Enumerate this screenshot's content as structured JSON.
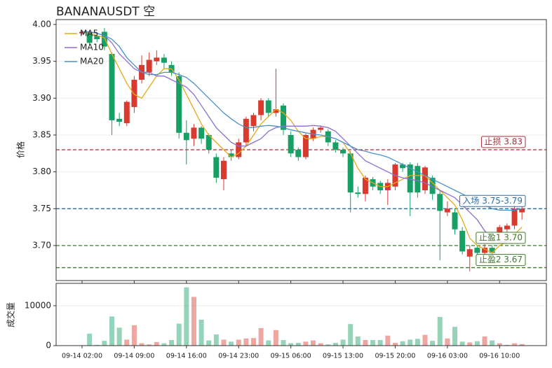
{
  "chart_data": {
    "type": "candlestick",
    "title": "BANANAUSDT  空",
    "ylabel": "价格",
    "volume_label": "成交量",
    "legend": "upper left",
    "grid": true,
    "up_color": "#d93a2f",
    "down_color": "#16a066",
    "categories": [
      "09-14 02:00",
      null,
      null,
      null,
      null,
      null,
      null,
      "09-14 09:00",
      null,
      null,
      null,
      null,
      null,
      null,
      "09-14 16:00",
      null,
      null,
      null,
      null,
      null,
      null,
      "09-14 23:00",
      null,
      null,
      null,
      null,
      null,
      null,
      "09-15 06:00",
      null,
      null,
      null,
      null,
      null,
      null,
      "09-15 13:00",
      null,
      null,
      null,
      null,
      null,
      null,
      "09-15 20:00",
      null,
      null,
      null,
      null,
      null,
      null,
      "09-16 03:00",
      null,
      null,
      null,
      null,
      null,
      null,
      "09-16 10:00",
      null,
      null,
      null
    ],
    "open": [
      3.988,
      3.99,
      3.984,
      3.99,
      3.96,
      3.872,
      3.866,
      3.888,
      3.925,
      3.935,
      3.95,
      3.955,
      3.945,
      3.93,
      3.853,
      3.845,
      3.86,
      3.85,
      3.82,
      3.79,
      3.825,
      3.82,
      3.84,
      3.862,
      3.877,
      3.897,
      3.88,
      3.89,
      3.85,
      3.83,
      3.82,
      3.845,
      3.857,
      3.855,
      3.84,
      3.83,
      3.825,
      3.772,
      3.77,
      3.79,
      3.785,
      3.775,
      3.78,
      3.81,
      3.81,
      3.808,
      3.775,
      3.792,
      3.77,
      3.745,
      3.745,
      3.72,
      3.685,
      3.697,
      3.69,
      3.697,
      3.718,
      3.722,
      3.727,
      3.745
    ],
    "high": [
      3.991,
      3.992,
      3.986,
      3.995,
      3.962,
      3.88,
      3.897,
      3.93,
      3.958,
      3.962,
      3.965,
      3.96,
      3.95,
      3.935,
      3.87,
      3.865,
      3.862,
      3.852,
      3.825,
      3.82,
      3.83,
      3.845,
      3.875,
      3.88,
      3.9,
      3.9,
      3.94,
      3.893,
      3.855,
      3.833,
      3.852,
      3.86,
      3.863,
      3.858,
      3.843,
      3.833,
      3.828,
      3.78,
      3.795,
      3.793,
      3.788,
      3.79,
      3.812,
      3.812,
      3.813,
      3.812,
      3.808,
      3.795,
      3.775,
      3.76,
      3.75,
      3.725,
      3.7,
      3.7,
      3.702,
      3.7,
      3.728,
      3.73,
      3.755,
      3.753
    ],
    "low": [
      3.986,
      3.972,
      3.976,
      3.965,
      3.85,
      3.862,
      3.862,
      3.88,
      3.92,
      3.93,
      3.945,
      3.94,
      3.93,
      3.845,
      3.81,
      3.835,
      3.838,
      3.825,
      3.785,
      3.775,
      3.815,
      3.817,
      3.835,
      3.855,
      3.87,
      3.875,
      3.875,
      3.85,
      3.82,
      3.815,
      3.817,
      3.842,
      3.853,
      3.835,
      3.826,
      3.82,
      3.745,
      3.765,
      3.76,
      3.775,
      3.77,
      3.755,
      3.775,
      3.8,
      3.74,
      3.765,
      3.77,
      3.762,
      3.68,
      3.74,
      3.715,
      3.688,
      3.665,
      3.685,
      3.687,
      3.686,
      3.712,
      3.718,
      3.722,
      3.735
    ],
    "close": [
      3.99,
      3.975,
      3.98,
      3.97,
      3.87,
      3.868,
      3.895,
      3.925,
      3.945,
      3.952,
      3.955,
      3.948,
      3.935,
      3.853,
      3.843,
      3.86,
      3.845,
      3.83,
      3.792,
      3.815,
      3.82,
      3.84,
      3.872,
      3.877,
      3.897,
      3.88,
      3.885,
      3.857,
      3.825,
      3.82,
      3.85,
      3.857,
      3.86,
      3.84,
      3.83,
      3.825,
      3.772,
      3.77,
      3.792,
      3.78,
      3.775,
      3.785,
      3.81,
      3.805,
      3.772,
      3.772,
      3.806,
      3.77,
      3.747,
      3.75,
      3.722,
      3.692,
      3.695,
      3.69,
      3.697,
      3.69,
      3.725,
      3.727,
      3.75,
      3.75
    ],
    "volume": [
      100,
      3000,
      200,
      1200,
      7300,
      4500,
      1500,
      5100,
      600,
      300,
      900,
      600,
      1400,
      5500,
      14600,
      12200,
      6500,
      1300,
      2800,
      1500,
      1000,
      1500,
      1800,
      1900,
      4400,
      1300,
      3900,
      1400,
      600,
      700,
      1000,
      1300,
      600,
      300,
      700,
      1500,
      5400,
      2300,
      1400,
      1400,
      1400,
      2500,
      700,
      1100,
      1500,
      1700,
      2700,
      1200,
      7200,
      1800,
      4700,
      1000,
      800,
      1100,
      2300,
      1300,
      600,
      200,
      600,
      400
    ],
    "ylim": [
      3.6525,
      4.0066
    ],
    "yticks": [
      {
        "value": 3.7,
        "label": "3.70"
      },
      3.75,
      {
        "value": 3.8,
        "label": "3.80"
      },
      3.85,
      {
        "value": 3.9,
        "label": "3.90"
      },
      3.95,
      {
        "value": 4.0,
        "label": "4.00"
      }
    ],
    "volume_ylim": [
      0,
      15600
    ],
    "volume_yticks": [
      0,
      10000
    ],
    "series": [
      {
        "name": "MA5",
        "color": "#e6a817",
        "values": [
          3.99,
          3.988,
          3.985,
          3.982,
          3.96,
          3.94,
          3.92,
          3.905,
          3.9,
          3.915,
          3.93,
          3.94,
          3.94,
          3.925,
          3.905,
          3.885,
          3.865,
          3.85,
          3.84,
          3.83,
          3.82,
          3.825,
          3.835,
          3.85,
          3.865,
          3.875,
          3.885,
          3.88,
          3.87,
          3.855,
          3.845,
          3.845,
          3.848,
          3.848,
          3.845,
          3.84,
          3.825,
          3.805,
          3.79,
          3.785,
          3.78,
          3.78,
          3.785,
          3.79,
          3.795,
          3.795,
          3.795,
          3.785,
          3.775,
          3.765,
          3.755,
          3.735,
          3.71,
          3.7,
          3.695,
          3.69,
          3.7,
          3.705,
          3.715,
          3.725
        ]
      },
      {
        "name": "MA10",
        "color": "#8b6fd0",
        "values": [
          3.99,
          3.99,
          3.988,
          3.985,
          3.975,
          3.96,
          3.95,
          3.94,
          3.935,
          3.935,
          3.93,
          3.93,
          3.925,
          3.92,
          3.915,
          3.905,
          3.89,
          3.875,
          3.86,
          3.85,
          3.84,
          3.835,
          3.835,
          3.84,
          3.845,
          3.855,
          3.86,
          3.862,
          3.862,
          3.862,
          3.862,
          3.863,
          3.862,
          3.86,
          3.855,
          3.845,
          3.835,
          3.825,
          3.815,
          3.81,
          3.805,
          3.8,
          3.795,
          3.792,
          3.79,
          3.788,
          3.785,
          3.78,
          3.775,
          3.77,
          3.765,
          3.755,
          3.745,
          3.735,
          3.72,
          3.71,
          3.705,
          3.705,
          3.71,
          3.715
        ]
      },
      {
        "name": "MA20",
        "color": "#4a90c8",
        "values": [
          3.99,
          3.99,
          3.988,
          3.985,
          3.98,
          3.97,
          3.955,
          3.945,
          3.935,
          3.932,
          3.932,
          3.935,
          3.935,
          3.932,
          3.928,
          3.92,
          3.91,
          3.9,
          3.89,
          3.88,
          3.872,
          3.865,
          3.86,
          3.86,
          3.862,
          3.863,
          3.862,
          3.86,
          3.857,
          3.855,
          3.853,
          3.851,
          3.85,
          3.848,
          3.845,
          3.84,
          3.835,
          3.83,
          3.828,
          3.825,
          3.823,
          3.82,
          3.815,
          3.81,
          3.805,
          3.8,
          3.795,
          3.79,
          3.785,
          3.78,
          3.775,
          3.77,
          3.765,
          3.76,
          3.755,
          3.75,
          3.748,
          3.748,
          3.748,
          3.75
        ]
      }
    ],
    "levels": [
      {
        "label": "止损 3.83",
        "value": 3.83,
        "color": "#a0303a"
      },
      {
        "label": "入场 3.75-3.79",
        "value": 3.75,
        "color": "#2a6fa8"
      },
      {
        "label": "止盈1 3.70",
        "value": 3.7,
        "color": "#3f7a2a"
      },
      {
        "label": "止盈2 3.67",
        "value": 3.67,
        "color": "#3f7a2a"
      }
    ]
  }
}
